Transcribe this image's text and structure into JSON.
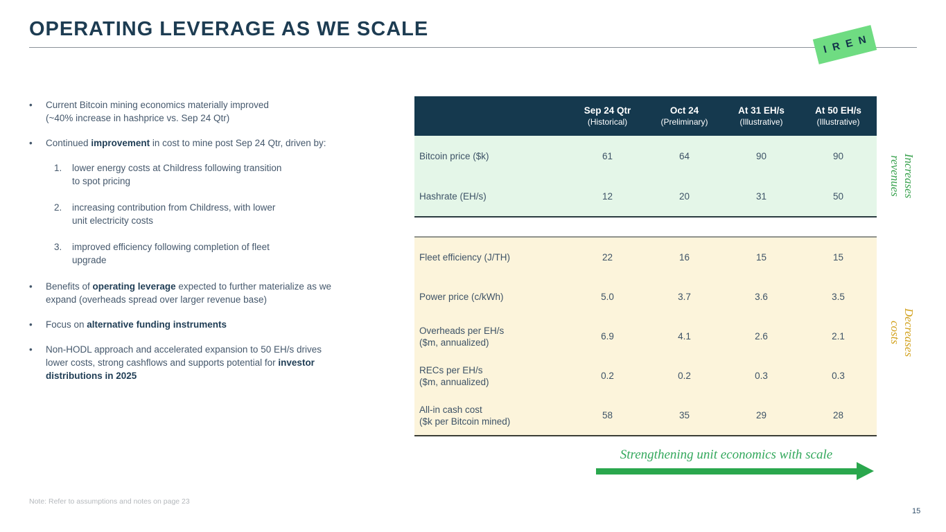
{
  "slide": {
    "title": "OPERATING LEVERAGE AS WE SCALE",
    "logo_text": "IREN",
    "footnote": "Note: Refer to assumptions and notes on page 23",
    "page_number": "15"
  },
  "bullets": [
    {
      "marker": "•",
      "indent": false,
      "segments": [
        {
          "t": "Current Bitcoin mining economics materially improved"
        },
        {
          "br": true
        },
        {
          "t": "(~40% increase in hashprice vs. Sep 24 Qtr)"
        }
      ]
    },
    {
      "marker": "•",
      "indent": false,
      "segments": [
        {
          "t": "Continued "
        },
        {
          "t": "improvement",
          "b": true
        },
        {
          "t": " in cost to mine post Sep 24 Qtr, driven by:"
        }
      ]
    },
    {
      "marker": "1.",
      "indent": true,
      "segments": [
        {
          "t": "lower energy costs at Childress following transition"
        },
        {
          "br": true
        },
        {
          "t": "to spot pricing"
        }
      ]
    },
    {
      "marker": "2.",
      "indent": true,
      "segments": [
        {
          "t": "increasing contribution from Childress, with lower"
        },
        {
          "br": true
        },
        {
          "t": "unit electricity costs"
        }
      ]
    },
    {
      "marker": "3.",
      "indent": true,
      "segments": [
        {
          "t": "improved efficiency following completion of fleet"
        },
        {
          "br": true
        },
        {
          "t": "upgrade"
        }
      ]
    },
    {
      "marker": "•",
      "indent": false,
      "segments": [
        {
          "t": "Benefits of "
        },
        {
          "t": "operating leverage",
          "b": true
        },
        {
          "t": " expected to further materialize as we"
        },
        {
          "br": true
        },
        {
          "t": "expand (overheads spread over larger revenue base)"
        }
      ]
    },
    {
      "marker": "•",
      "indent": false,
      "segments": [
        {
          "t": "Focus on "
        },
        {
          "t": "alternative funding instruments",
          "b": true
        }
      ]
    },
    {
      "marker": "•",
      "indent": false,
      "segments": [
        {
          "t": "Non-HODL approach and accelerated expansion to 50 EH/s drives"
        },
        {
          "br": true
        },
        {
          "t": "lower costs, strong cashflows and supports potential for "
        },
        {
          "t": "investor",
          "b": true
        },
        {
          "br": true
        },
        {
          "t": "distributions in 2025",
          "b": true
        }
      ]
    }
  ],
  "table": {
    "columns": [
      {
        "title": "Sep 24 Qtr",
        "subtitle": "(Historical)"
      },
      {
        "title": "Oct 24",
        "subtitle": "(Preliminary)"
      },
      {
        "title": "At 31 EH/s",
        "subtitle": "(Illustrative)"
      },
      {
        "title": "At 50 EH/s",
        "subtitle": "(Illustrative)"
      }
    ],
    "sections": [
      {
        "name": "increases-revenues",
        "rows": [
          {
            "label": "Bitcoin price ($k)",
            "label2": "",
            "values": [
              "61",
              "64",
              "90",
              "90"
            ]
          },
          {
            "label": "Hashrate (EH/s)",
            "label2": "",
            "values": [
              "12",
              "20",
              "31",
              "50"
            ]
          }
        ]
      },
      {
        "name": "decreases-costs",
        "rows": [
          {
            "label": "Fleet efficiency (J/TH)",
            "label2": "",
            "values": [
              "22",
              "16",
              "15",
              "15"
            ]
          },
          {
            "label": "Power price (c/kWh)",
            "label2": "",
            "values": [
              "5.0",
              "3.7",
              "3.6",
              "3.5"
            ]
          },
          {
            "label": "Overheads per EH/s",
            "label2": "($m, annualized)",
            "values": [
              "6.9",
              "4.1",
              "2.6",
              "2.1"
            ]
          },
          {
            "label": "RECs per EH/s",
            "label2": "($m, annualized)",
            "values": [
              "0.2",
              "0.2",
              "0.3",
              "0.3"
            ]
          },
          {
            "label": "All-in cash cost",
            "label2": "($k per Bitcoin mined)",
            "values": [
              "58",
              "35",
              "29",
              "28"
            ]
          }
        ]
      }
    ]
  },
  "side_labels": {
    "increases": {
      "line1": "Increases",
      "line2": "revenues",
      "color": "#3aa24f"
    },
    "decreases": {
      "line1": "Decreases",
      "line2": "costs",
      "color": "#d2a21f"
    }
  },
  "arrow": {
    "caption": "Strengthening unit economics with scale",
    "color": "#2aa74d"
  },
  "colors": {
    "header_bg": "#15394e",
    "revenues_bg": "#e4f6e8",
    "costs_bg": "#fcf4db",
    "title": "#1d3c52",
    "body_text": "#45586c",
    "logo_green": "#6fdc82"
  }
}
